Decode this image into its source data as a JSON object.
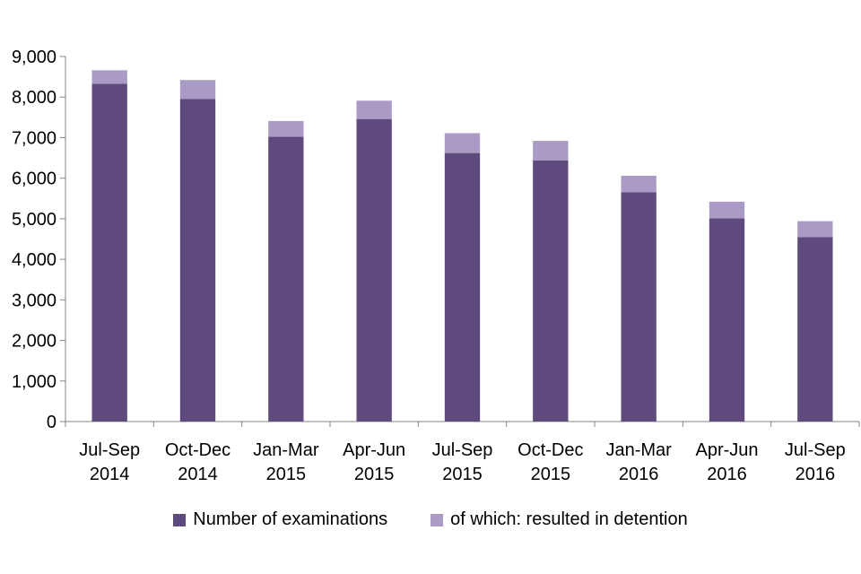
{
  "chart_data": {
    "type": "bar",
    "stacked": true,
    "title": "",
    "xlabel": "",
    "ylabel": "",
    "ylim": [
      0,
      9000
    ],
    "yticks": [
      "0",
      "1,000",
      "2,000",
      "3,000",
      "4,000",
      "5,000",
      "6,000",
      "7,000",
      "8,000",
      "9,000"
    ],
    "ytick_values": [
      0,
      1000,
      2000,
      3000,
      4000,
      5000,
      6000,
      7000,
      8000,
      9000
    ],
    "categories": [
      [
        "Jul-Sep",
        "2014"
      ],
      [
        "Oct-Dec",
        "2014"
      ],
      [
        "Jan-Mar",
        "2015"
      ],
      [
        "Apr-Jun",
        "2015"
      ],
      [
        "Jul-Sep",
        "2015"
      ],
      [
        "Oct-Dec",
        "2015"
      ],
      [
        "Jan-Mar",
        "2016"
      ],
      [
        "Apr-Jun",
        "2016"
      ],
      [
        "Jul-Sep",
        "2016"
      ]
    ],
    "series": [
      {
        "name": "Number of examinations",
        "color": "#5e4a7d",
        "values": [
          8330,
          7950,
          7020,
          7460,
          6620,
          6440,
          5650,
          5010,
          4550
        ]
      },
      {
        "name": "of which: resulted in detention",
        "color": "#a99bc6",
        "values": [
          330,
          470,
          390,
          450,
          490,
          480,
          410,
          410,
          390
        ]
      }
    ],
    "legend_position": "bottom",
    "grid": false
  }
}
